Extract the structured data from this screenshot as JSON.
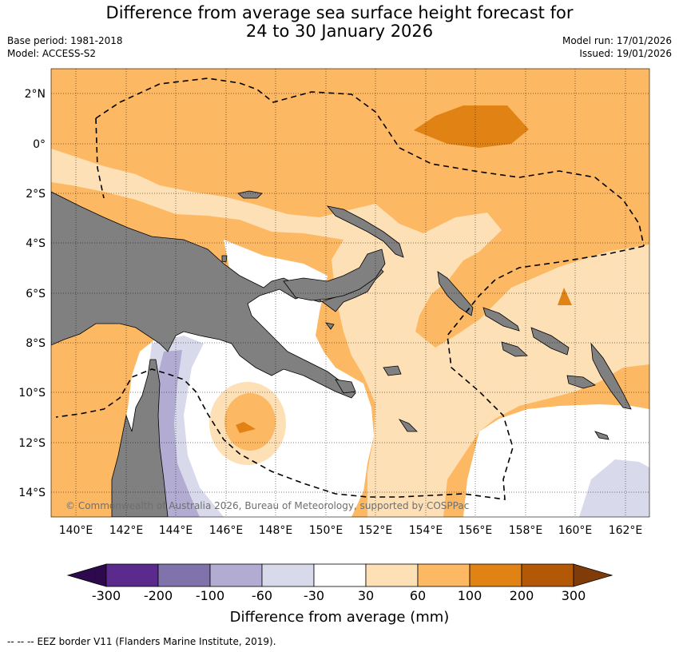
{
  "title": {
    "line1": "Difference from average sea surface height forecast for",
    "line2": "24 to 30 January 2026"
  },
  "meta": {
    "base_period": "Base period: 1981-2018",
    "model": "Model: ACCESS-S2",
    "model_run": "Model run: 17/01/2026",
    "issued": "Issued: 19/01/2026"
  },
  "map": {
    "longitude_range_degE": [
      139,
      163
    ],
    "latitude_range_deg": [
      -15,
      3
    ],
    "lon_ticks": [
      "140°E",
      "142°E",
      "144°E",
      "146°E",
      "148°E",
      "150°E",
      "152°E",
      "154°E",
      "156°E",
      "158°E",
      "160°E",
      "162°E"
    ],
    "lat_ticks": [
      "2°N",
      "0°",
      "2°S",
      "4°S",
      "6°S",
      "8°S",
      "10°S",
      "12°S",
      "14°S"
    ],
    "gridlines": "dotted",
    "land_color": "#808080",
    "copyright": "© Commonwealth of Australia 2026, Bureau of Meteorology, supported by COSPPac"
  },
  "colorbar": {
    "label": "Difference from average (mm)",
    "ticks": [
      "-300",
      "-200",
      "-100",
      "-60",
      "-30",
      "30",
      "60",
      "100",
      "200",
      "300"
    ],
    "colors": {
      "below_-300": "#2d0a4e",
      "-300_-200": "#5a2b8c",
      "-200_-100": "#8073ac",
      "-100_-60": "#b2abd2",
      "-60_-30": "#d8daeb",
      "-30_30": "#ffffff",
      "30_60": "#fee0b6",
      "60_100": "#fdb863",
      "100_200": "#e08214",
      "200_300": "#b35806",
      "above_300": "#7f3b08"
    }
  },
  "legend": {
    "eez_symbol": "--  --  --",
    "eez_text": "EEZ border V11 (Flanders Marine Institute, 2019)."
  }
}
